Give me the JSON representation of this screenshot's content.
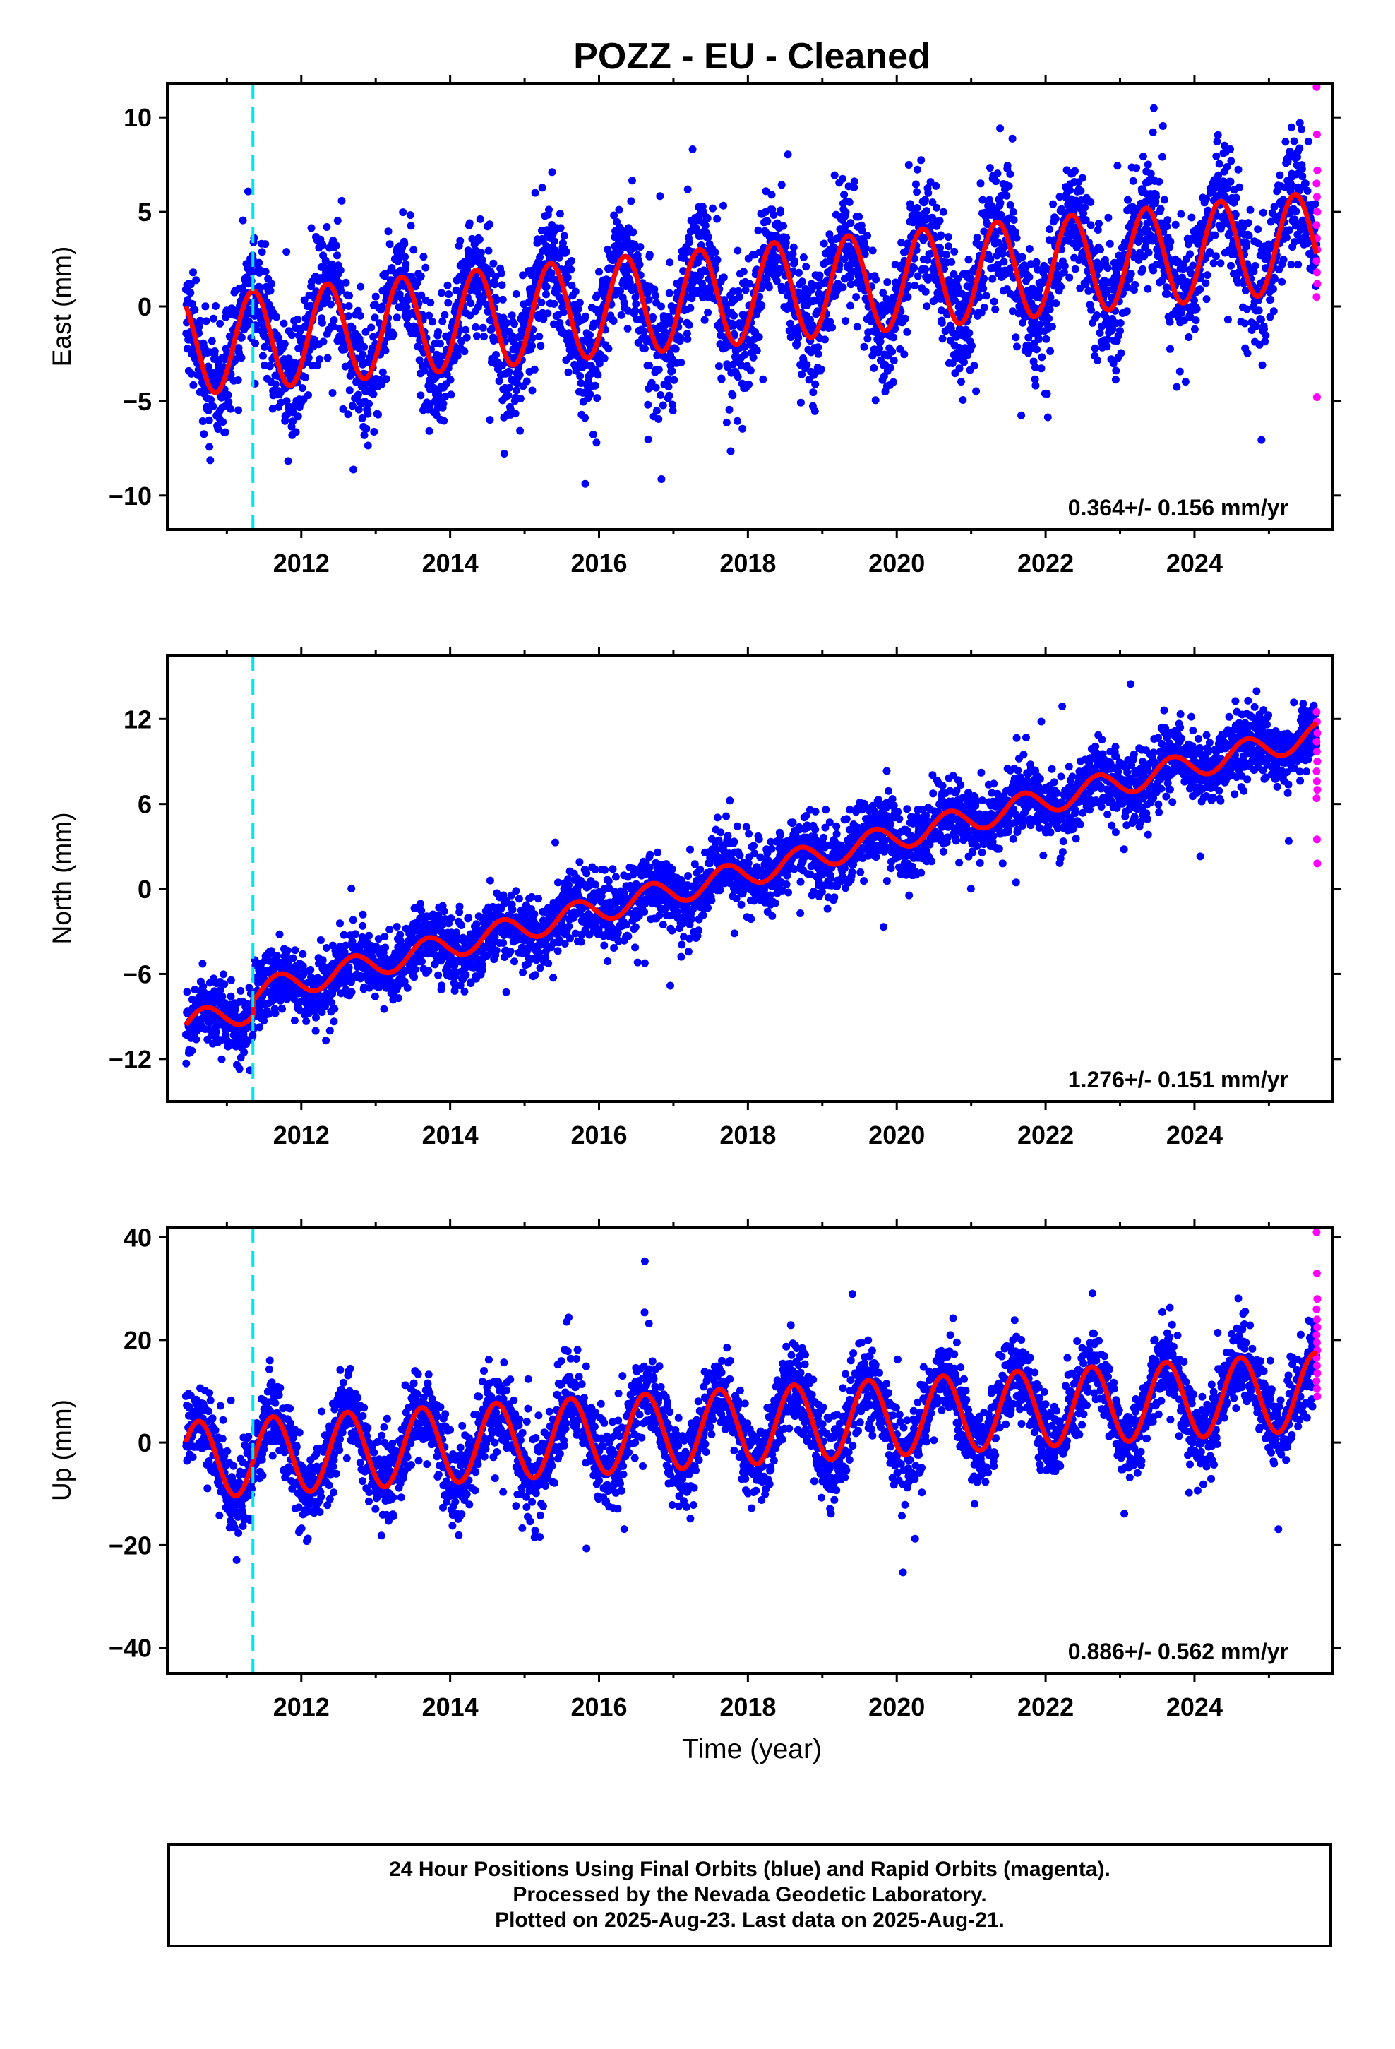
{
  "title": "POZZ  - EU - Cleaned",
  "xlabel": "Time (year)",
  "caption": [
    "24 Hour Positions Using Final Orbits (blue) and Rapid Orbits (magenta).",
    "Processed by the Nevada Geodetic Laboratory.",
    "Plotted on 2025-Aug-23. Last data on 2025-Aug-21."
  ],
  "colors": {
    "final_orbits": "#0000ff",
    "rapid_orbits": "#ff00ff",
    "model_fit": "#ff0000",
    "offset_line": "#00e5ee"
  },
  "chart_data": [
    {
      "type": "scatter",
      "ylabel": "East (mm)",
      "xlim": [
        2010.2,
        2025.85
      ],
      "ylim": [
        -11.8,
        11.8
      ],
      "xticks": [
        2012,
        2014,
        2016,
        2018,
        2020,
        2022,
        2024
      ],
      "yticks": [
        -10,
        -5,
        0,
        5,
        10
      ],
      "ytick_labels": [
        "−10",
        "−5",
        "0",
        "5",
        "10"
      ],
      "rate_label": "0.364+/- 0.156 mm/yr",
      "equipment_change_epoch": 2011.35,
      "data_span": [
        2010.45,
        2025.64
      ],
      "model": {
        "ref_epoch": 2010.45,
        "intercept": -2.1,
        "slope": 0.364,
        "annual_amplitude": 2.6,
        "annual_peak": 0.35,
        "steps": [
          {
            "epoch": 2011.35,
            "delta": 0.0
          }
        ]
      },
      "scatter_sd": 1.6,
      "rapid_values": [
        11.6,
        9.1,
        7.2,
        6.5,
        5.8,
        5.0,
        4.3,
        3.6,
        3.0,
        2.4,
        1.8,
        1.2,
        0.5,
        -4.8
      ]
    },
    {
      "type": "scatter",
      "ylabel": "North (mm)",
      "xlim": [
        2010.2,
        2025.85
      ],
      "ylim": [
        -15.0,
        16.5
      ],
      "xticks": [
        2012,
        2014,
        2016,
        2018,
        2020,
        2022,
        2024
      ],
      "yticks": [
        -12,
        -6,
        0,
        6,
        12
      ],
      "ytick_labels": [
        "−12",
        "−6",
        "0",
        "6",
        "12"
      ],
      "rate_label": "1.276+/- 0.151 mm/yr",
      "equipment_change_epoch": 2011.35,
      "data_span": [
        2010.45,
        2025.64
      ],
      "model": {
        "ref_epoch": 2010.45,
        "intercept": -9.6,
        "slope": 1.276,
        "annual_amplitude": 0.9,
        "annual_peak": 0.7,
        "steps": [
          {
            "epoch": 2011.35,
            "delta": 1.1
          }
        ]
      },
      "scatter_sd": 1.2,
      "rapid_values": [
        12.5,
        11.8,
        11.0,
        10.4,
        9.7,
        9.0,
        8.3,
        7.6,
        7.0,
        6.4,
        3.5,
        1.8
      ]
    },
    {
      "type": "scatter",
      "ylabel": "Up (mm)",
      "xlim": [
        2010.2,
        2025.85
      ],
      "ylim": [
        -45,
        42
      ],
      "xticks": [
        2012,
        2014,
        2016,
        2018,
        2020,
        2022,
        2024
      ],
      "yticks": [
        -40,
        -20,
        0,
        20,
        40
      ],
      "ytick_labels": [
        "−40",
        "−20",
        "0",
        "20",
        "40"
      ],
      "rate_label": "0.886+/- 0.562 mm/yr",
      "equipment_change_epoch": 2011.35,
      "data_span": [
        2010.45,
        2025.64
      ],
      "model": {
        "ref_epoch": 2010.45,
        "intercept": -3.5,
        "slope": 0.886,
        "annual_amplitude": 7.5,
        "annual_peak": 0.62,
        "steps": [
          {
            "epoch": 2011.35,
            "delta": 0.0
          }
        ]
      },
      "scatter_sd": 4.0,
      "rapid_values": [
        41.0,
        33.0,
        28.0,
        26.0,
        24.0,
        22.5,
        21.0,
        19.5,
        18.0,
        16.5,
        15.0,
        13.5,
        12.0,
        10.5,
        9.0
      ]
    }
  ]
}
